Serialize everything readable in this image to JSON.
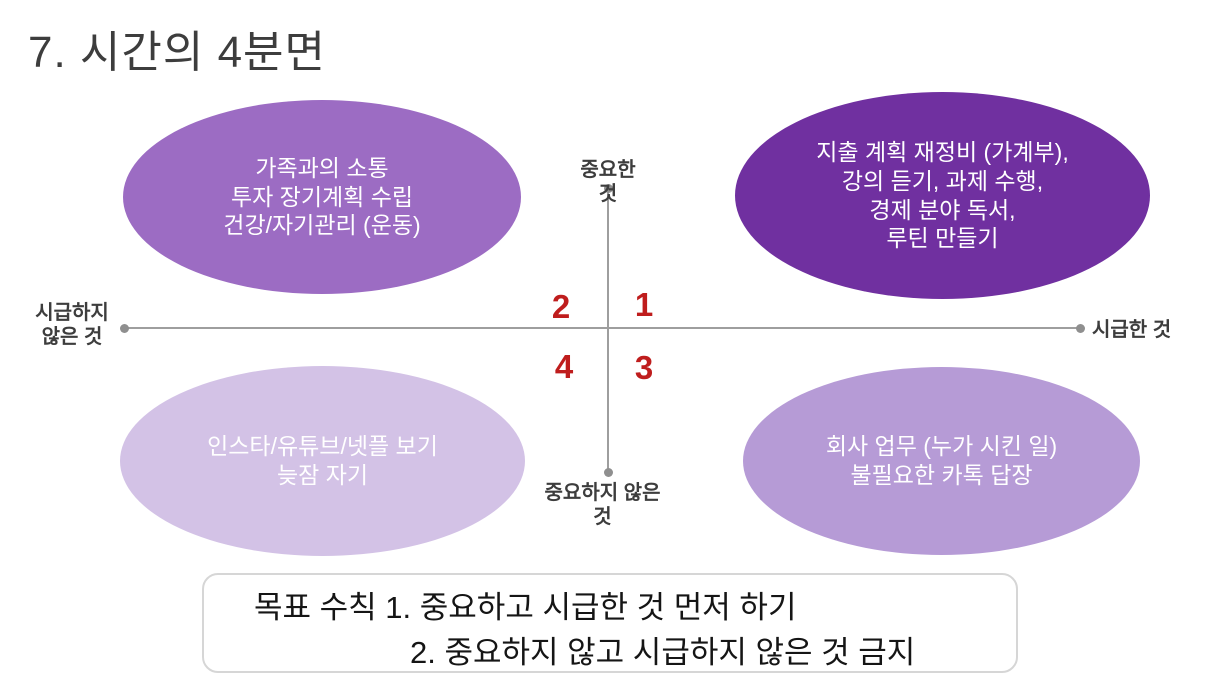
{
  "title": "7. 시간의 4분면",
  "colors": {
    "q1_fill": "#7030a0",
    "q2_fill": "#9c6cc3",
    "q3_fill": "#b69bd6",
    "q4_fill": "#d3c2e6",
    "quadrant_number": "#bf1d1d",
    "axis_line": "#9e9e9e",
    "title_text": "#3d3d3d",
    "ellipse_text": "#ffffff"
  },
  "axes": {
    "top_label": "중요한\n것",
    "bottom_label": "중요하지 않은\n것",
    "left_label": "시급하지\n않은 것",
    "right_label": "시급한 것"
  },
  "quadrants": {
    "q1": {
      "number": "1",
      "text": "지출 계획 재정비 (가계부),\n강의 듣기, 과제 수행,\n경제 분야 독서,\n루틴 만들기"
    },
    "q2": {
      "number": "2",
      "text": "가족과의 소통\n투자 장기계획 수립\n건강/자기관리 (운동)"
    },
    "q3": {
      "number": "3",
      "text": "회사 업무 (누가 시킨 일)\n불필요한 카톡 답장"
    },
    "q4": {
      "number": "4",
      "text": "인스타/유튜브/넷플 보기\n늦잠 자기"
    }
  },
  "note_box": {
    "line1": "목표 수칙 1. 중요하고 시급한 것 먼저 하기",
    "line2": "2. 중요하지 않고 시급하지 않은 것 금지"
  }
}
